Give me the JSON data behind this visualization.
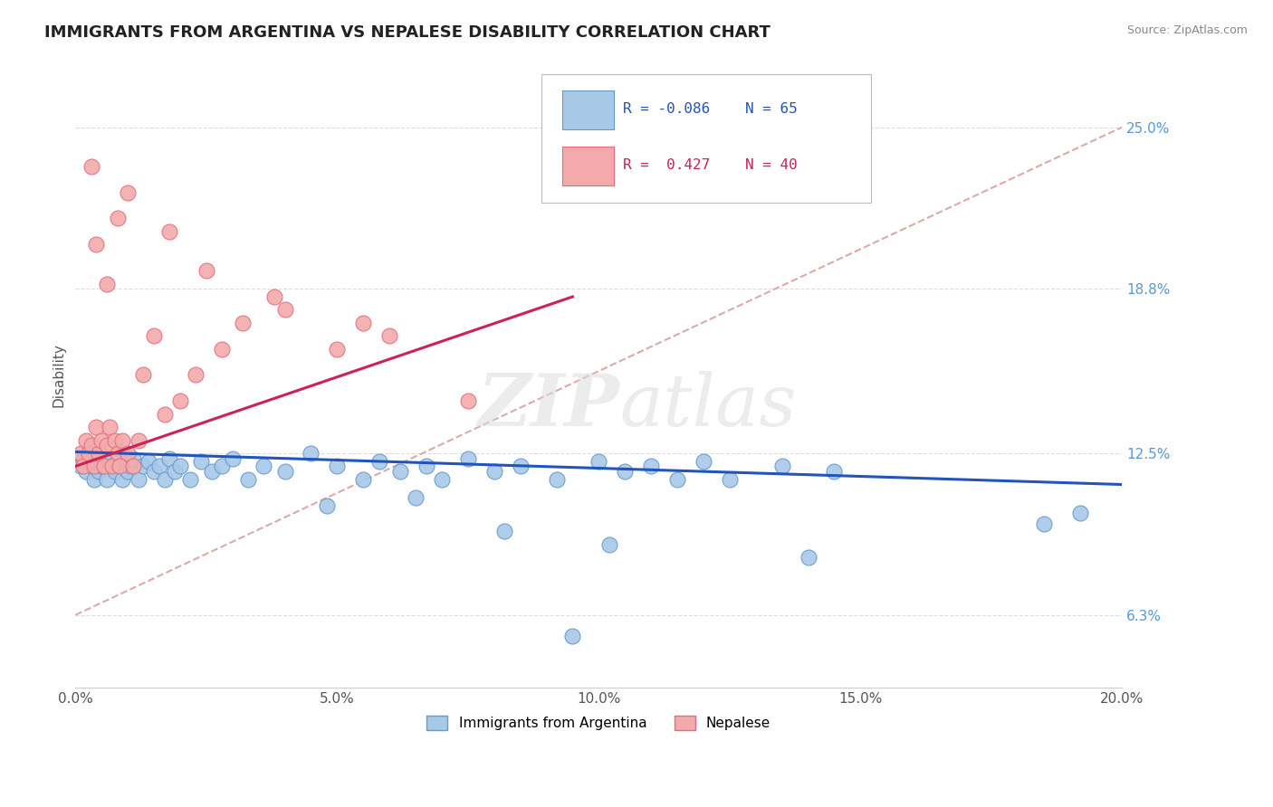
{
  "title": "IMMIGRANTS FROM ARGENTINA VS NEPALESE DISABILITY CORRELATION CHART",
  "source": "Source: ZipAtlas.com",
  "ylabel": "Disability",
  "xlabel_ticks": [
    "0.0%",
    "5.0%",
    "10.0%",
    "15.0%",
    "20.0%"
  ],
  "xlabel_vals": [
    0.0,
    5.0,
    10.0,
    15.0,
    20.0
  ],
  "ylabel_ticks": [
    "6.3%",
    "12.5%",
    "18.8%",
    "25.0%"
  ],
  "ylabel_vals": [
    6.3,
    12.5,
    18.8,
    25.0
  ],
  "xlim": [
    0.0,
    20.0
  ],
  "ylim": [
    3.5,
    27.5
  ],
  "blue_color": "#A8C8E8",
  "pink_color": "#F4AAAA",
  "blue_edge": "#6699CC",
  "pink_edge": "#E07080",
  "trend_blue": "#2255BB",
  "trend_pink": "#CC2255",
  "diagonal_color": "#DDAAAA",
  "legend_R_blue": "-0.086",
  "legend_N_blue": "65",
  "legend_R_pink": "0.427",
  "legend_N_pink": "40",
  "argentina_x": [
    0.1,
    0.15,
    0.2,
    0.25,
    0.3,
    0.35,
    0.4,
    0.45,
    0.5,
    0.55,
    0.6,
    0.65,
    0.7,
    0.75,
    0.8,
    0.85,
    0.9,
    0.95,
    1.0,
    1.05,
    1.1,
    1.2,
    1.3,
    1.4,
    1.5,
    1.6,
    1.7,
    1.8,
    1.9,
    2.0,
    2.2,
    2.4,
    2.6,
    2.8,
    3.0,
    3.3,
    3.6,
    4.0,
    4.5,
    5.0,
    5.5,
    5.8,
    6.2,
    6.7,
    7.0,
    7.5,
    8.0,
    8.5,
    9.2,
    10.0,
    10.5,
    11.0,
    11.5,
    12.0,
    12.5,
    13.5,
    14.5,
    4.8,
    6.5,
    8.2,
    10.2,
    14.0,
    18.5,
    19.2,
    9.5
  ],
  "argentina_y": [
    12.0,
    12.3,
    11.8,
    12.5,
    12.0,
    11.5,
    12.2,
    11.8,
    12.0,
    12.4,
    11.5,
    12.3,
    12.0,
    11.8,
    12.5,
    12.0,
    11.5,
    12.2,
    11.8,
    12.0,
    12.3,
    11.5,
    12.0,
    12.2,
    11.8,
    12.0,
    11.5,
    12.3,
    11.8,
    12.0,
    11.5,
    12.2,
    11.8,
    12.0,
    12.3,
    11.5,
    12.0,
    11.8,
    12.5,
    12.0,
    11.5,
    12.2,
    11.8,
    12.0,
    11.5,
    12.3,
    11.8,
    12.0,
    11.5,
    12.2,
    11.8,
    12.0,
    11.5,
    12.2,
    11.5,
    12.0,
    11.8,
    10.5,
    10.8,
    9.5,
    9.0,
    8.5,
    9.8,
    10.2,
    5.5
  ],
  "nepalese_x": [
    0.1,
    0.15,
    0.2,
    0.25,
    0.3,
    0.35,
    0.4,
    0.45,
    0.5,
    0.55,
    0.6,
    0.65,
    0.7,
    0.75,
    0.8,
    0.85,
    0.9,
    1.0,
    1.1,
    1.2,
    1.3,
    1.5,
    1.7,
    2.0,
    2.3,
    2.8,
    3.2,
    4.0,
    5.0,
    6.0,
    1.8,
    2.5,
    3.8,
    5.5,
    7.5,
    0.4,
    0.6,
    0.8,
    1.0,
    0.3
  ],
  "nepalese_y": [
    12.5,
    12.0,
    13.0,
    12.5,
    12.8,
    12.0,
    13.5,
    12.5,
    13.0,
    12.0,
    12.8,
    13.5,
    12.0,
    13.0,
    12.5,
    12.0,
    13.0,
    12.5,
    12.0,
    13.0,
    15.5,
    17.0,
    14.0,
    14.5,
    15.5,
    16.5,
    17.5,
    18.0,
    16.5,
    17.0,
    21.0,
    19.5,
    18.5,
    17.5,
    14.5,
    20.5,
    19.0,
    21.5,
    22.5,
    23.5
  ],
  "blue_trend_x0": 0.0,
  "blue_trend_y0": 12.55,
  "blue_trend_x1": 20.0,
  "blue_trend_y1": 11.3,
  "pink_trend_x0": 0.0,
  "pink_trend_y0": 12.0,
  "pink_trend_x1": 9.5,
  "pink_trend_y1": 18.5,
  "diag_x0": 0.0,
  "diag_y0": 6.3,
  "diag_x1": 20.0,
  "diag_y1": 25.0
}
